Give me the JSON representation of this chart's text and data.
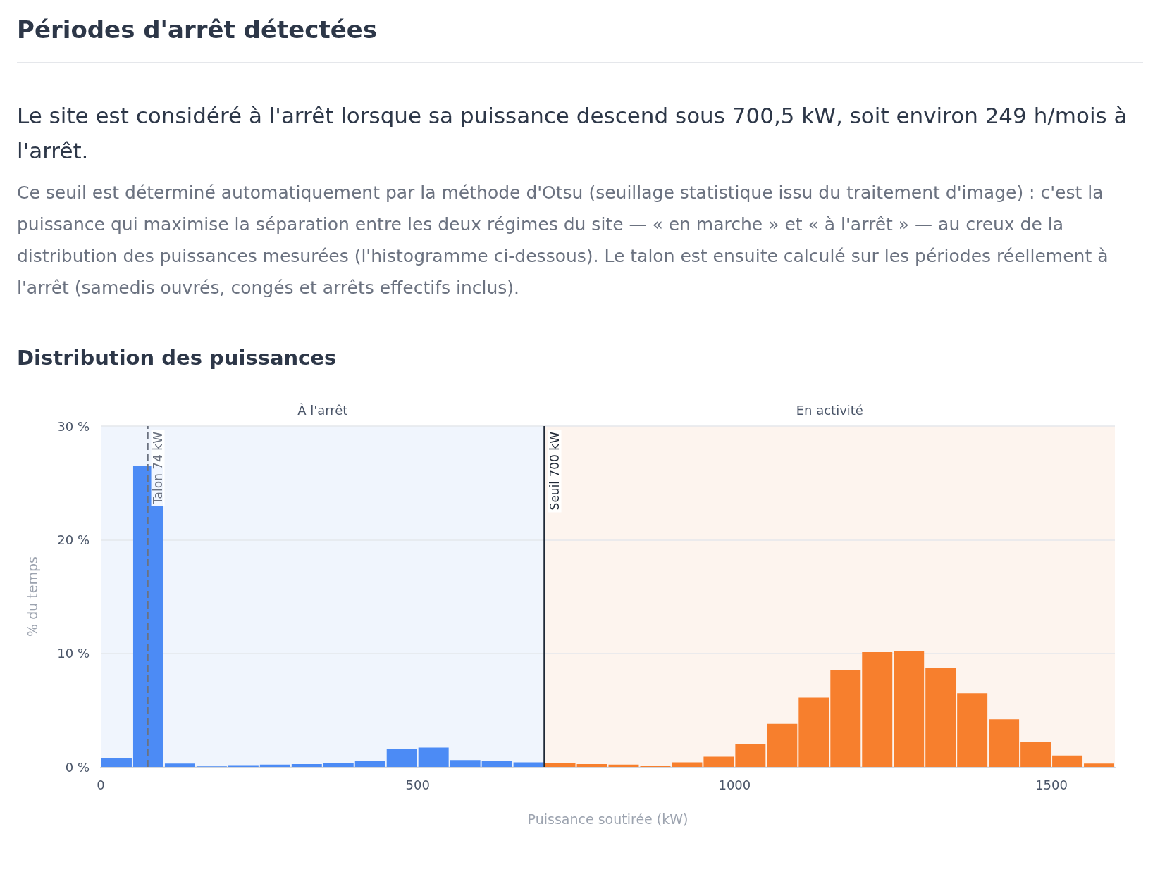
{
  "chart_data": {
    "type": "histogram",
    "title": "Périodes d'arrêt détectées",
    "subtitle": "Distribution des puissances",
    "annotations": [
      "Le site est considéré à l'arrêt lorsque sa puissance descend sous 700,5 kW, soit environ 249 h/mois à l'arrêt.",
      "Ce seuil est déterminé automatiquement par la méthode d'Otsu (seuillage statistique issu du traitement d'image) : c'est la puissance qui maximise la séparation entre les deux régimes du site — « en marche » et « à l'arrêt » — au creux de la distribution des puissances mesurées (l'histogramme ci-dessous). Le talon est ensuite calculé sur les périodes réellement à l'arrêt (samedis ouvrés, congés et arrêts effectifs inclus)."
    ],
    "xlabel": "Puissance soutirée (kW)",
    "ylabel": "% du temps",
    "bins": [
      0,
      50,
      100,
      150,
      200,
      250,
      300,
      350,
      400,
      450,
      500,
      550,
      600,
      650,
      700,
      750,
      800,
      850,
      900,
      950,
      1000,
      1050,
      1100,
      1150,
      1200,
      1250,
      1300,
      1350,
      1400,
      1450,
      1500,
      1550,
      1600
    ],
    "values": [
      0.8,
      26.5,
      0.3,
      0.05,
      0.15,
      0.2,
      0.25,
      0.35,
      0.5,
      1.6,
      1.7,
      0.6,
      0.5,
      0.4,
      0.35,
      0.25,
      0.2,
      0.1,
      0.4,
      0.9,
      2.0,
      3.8,
      6.1,
      8.5,
      10.1,
      10.2,
      8.7,
      6.5,
      4.2,
      2.2,
      1.0,
      0.3
    ],
    "colors": [
      "#4c8bf5",
      "#4c8bf5",
      "#4c8bf5",
      "#4c8bf5",
      "#4c8bf5",
      "#4c8bf5",
      "#4c8bf5",
      "#4c8bf5",
      "#4c8bf5",
      "#4c8bf5",
      "#4c8bf5",
      "#4c8bf5",
      "#4c8bf5",
      "#4c8bf5",
      "#f77f2d",
      "#f77f2d",
      "#f77f2d",
      "#f77f2d",
      "#f77f2d",
      "#f77f2d",
      "#f77f2d",
      "#f77f2d",
      "#f77f2d",
      "#f77f2d",
      "#f77f2d",
      "#f77f2d",
      "#f77f2d",
      "#f77f2d",
      "#f77f2d",
      "#f77f2d",
      "#f77f2d",
      "#f77f2d"
    ],
    "xlim": [
      0,
      1600
    ],
    "xticks": [
      0,
      500,
      1000,
      1500
    ],
    "ylim": [
      0,
      30
    ],
    "yticks": [
      {
        "value": 0,
        "label": "0 %"
      },
      {
        "value": 10,
        "label": "10 %"
      },
      {
        "value": 20,
        "label": "20 %"
      },
      {
        "value": 30,
        "label": "30 %"
      }
    ],
    "grid": "y",
    "bands": [
      {
        "axis": "x",
        "from": 0,
        "to": 700,
        "label": "À l'arrêt",
        "color": "#f0f5fd"
      },
      {
        "axis": "x",
        "from": 700,
        "to": 1600,
        "label": "En activité",
        "color": "#fdf4ee"
      }
    ],
    "ref_lines": [
      {
        "axis": "x",
        "value": 74,
        "label": "Talon 74 kW",
        "color": "#6b7280",
        "line_style": "dashed"
      },
      {
        "axis": "x",
        "value": 700,
        "label": "Seuil 700 kW",
        "color": "#1f2937",
        "line_style": "solid"
      }
    ]
  }
}
